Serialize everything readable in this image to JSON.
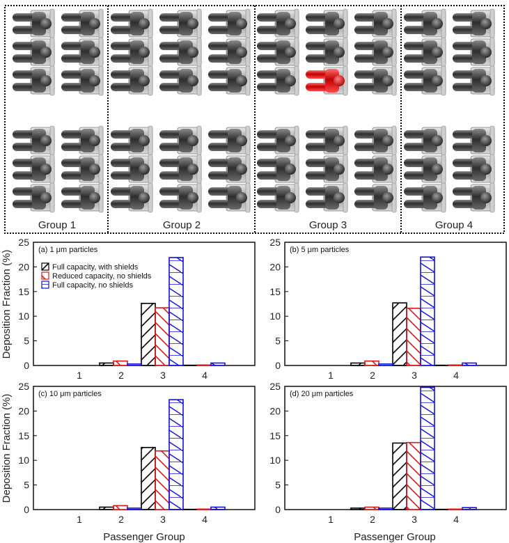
{
  "cabin_diagram": {
    "group_labels": [
      "Group 1",
      "Group 2",
      "Group 3",
      "Group 4"
    ],
    "seat_color": "#555555",
    "highlight_color": "#e01515",
    "columns_per_group": [
      2,
      3,
      3,
      2
    ],
    "rows_top": 3,
    "rows_bottom": 3,
    "source_seat": {
      "group": 3,
      "column": 2,
      "row": 3
    }
  },
  "shared_labels": {
    "ylabel": "Deposition Fraction (%)",
    "xlabel": "Passenger Group"
  },
  "legend": [
    {
      "label": "Full capacity, with shields",
      "color": "#000000",
      "hatch": "forward"
    },
    {
      "label": "Reduced capacity, no shields",
      "color": "#e01515",
      "hatch": "back"
    },
    {
      "label": "Full capacity, no shields",
      "color": "#1010e0",
      "hatch": "zigzag"
    }
  ],
  "chart_data": [
    {
      "type": "bar",
      "title": "(a) 1 μm particles",
      "categories": [
        "1",
        "2",
        "3",
        "4"
      ],
      "ylim": [
        0,
        25
      ],
      "yticks": [
        0,
        5,
        10,
        15,
        20,
        25
      ],
      "series": [
        {
          "name": "Full capacity, with shields",
          "values": [
            0,
            0.5,
            12.6,
            0.05
          ]
        },
        {
          "name": "Reduced capacity, no shields",
          "values": [
            0,
            0.9,
            11.7,
            0.1
          ]
        },
        {
          "name": "Full capacity, no shields",
          "values": [
            0,
            0.3,
            21.9,
            0.5
          ]
        }
      ]
    },
    {
      "type": "bar",
      "title": "(b) 5 μm particles",
      "categories": [
        "1",
        "2",
        "3",
        "4"
      ],
      "ylim": [
        0,
        25
      ],
      "yticks": [
        0,
        5,
        10,
        15,
        20,
        25
      ],
      "series": [
        {
          "name": "Full capacity, with shields",
          "values": [
            0,
            0.5,
            12.7,
            0.05
          ]
        },
        {
          "name": "Reduced capacity, no shields",
          "values": [
            0,
            0.9,
            11.6,
            0.1
          ]
        },
        {
          "name": "Full capacity, no shields",
          "values": [
            0,
            0.3,
            22.0,
            0.5
          ]
        }
      ]
    },
    {
      "type": "bar",
      "title": "(c) 10 μm particles",
      "categories": [
        "1",
        "2",
        "3",
        "4"
      ],
      "ylim": [
        0,
        25
      ],
      "yticks": [
        0,
        5,
        10,
        15,
        20,
        25
      ],
      "series": [
        {
          "name": "Full capacity, with shields",
          "values": [
            0,
            0.5,
            12.6,
            0.05
          ]
        },
        {
          "name": "Reduced capacity, no shields",
          "values": [
            0,
            0.8,
            11.9,
            0.1
          ]
        },
        {
          "name": "Full capacity, no shields",
          "values": [
            0,
            0.3,
            22.3,
            0.5
          ]
        }
      ]
    },
    {
      "type": "bar",
      "title": "(d) 20 μm particles",
      "categories": [
        "1",
        "2",
        "3",
        "4"
      ],
      "ylim": [
        0,
        25
      ],
      "yticks": [
        0,
        5,
        10,
        15,
        20,
        25
      ],
      "series": [
        {
          "name": "Full capacity, with shields",
          "values": [
            0,
            0.3,
            13.5,
            0.05
          ]
        },
        {
          "name": "Reduced capacity, no shields",
          "values": [
            0,
            0.5,
            13.6,
            0.1
          ]
        },
        {
          "name": "Full capacity, no shields",
          "values": [
            0,
            0.3,
            24.8,
            0.4
          ]
        }
      ]
    }
  ]
}
